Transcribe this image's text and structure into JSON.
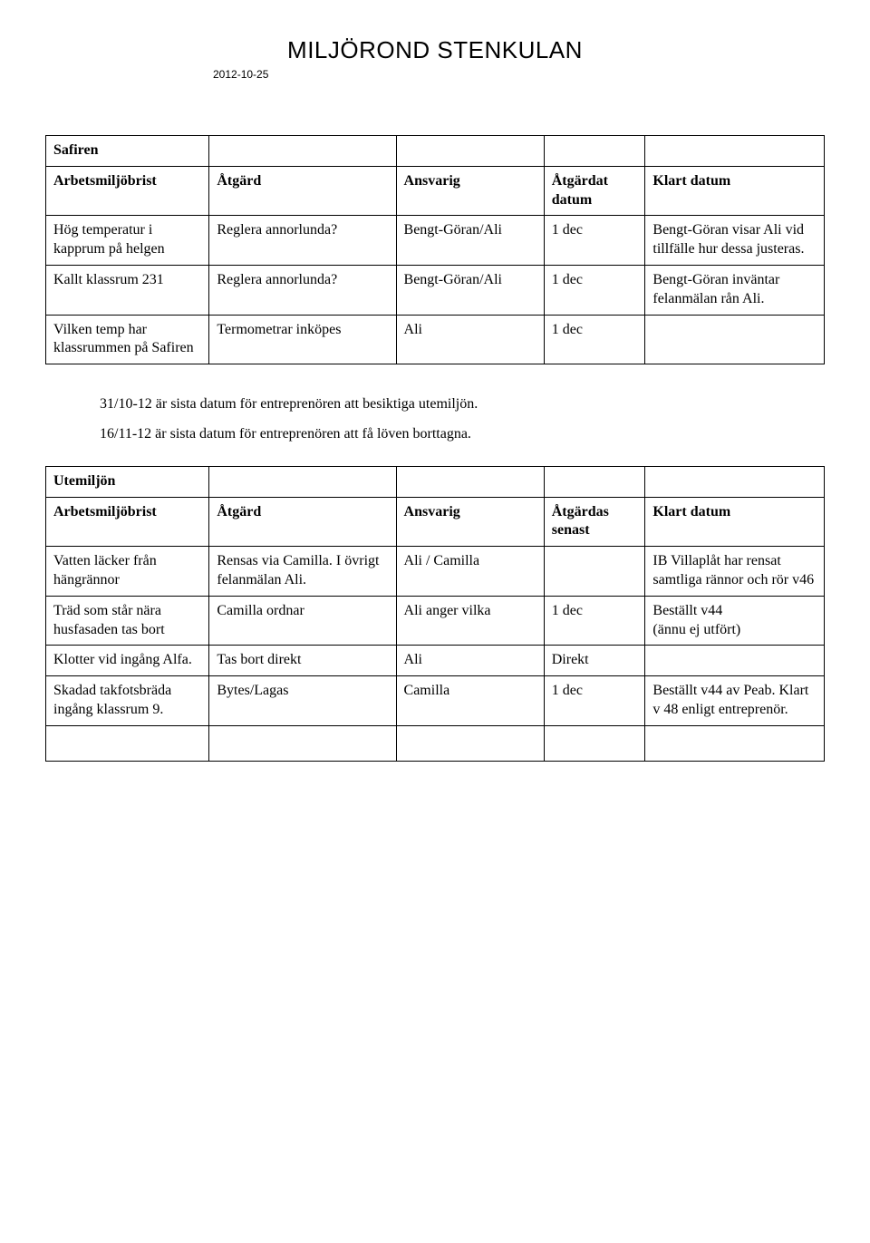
{
  "header": {
    "title": "MILJÖROND STENKULAN",
    "date": "2012-10-25"
  },
  "table1": {
    "section": "Safiren",
    "headers": {
      "c1": "Arbetsmiljöbrist",
      "c2": "Åtgärd",
      "c3": "Ansvarig",
      "c4": "Åtgärdat datum",
      "c5": "Klart datum"
    },
    "rows": [
      {
        "c1": "Hög temperatur i kapprum på helgen",
        "c2": "Reglera annorlunda?",
        "c3": "Bengt-Göran/Ali",
        "c4": "1 dec",
        "c5": "Bengt-Göran visar Ali vid tillfälle hur dessa justeras."
      },
      {
        "c1": "Kallt klassrum 231",
        "c2": "Reglera annorlunda?",
        "c3": "Bengt-Göran/Ali",
        "c4": "1 dec",
        "c5": "Bengt-Göran inväntar felanmälan rån Ali."
      },
      {
        "c1": "Vilken temp har klassrummen på Safiren",
        "c2": "Termometrar inköpes",
        "c3": "Ali",
        "c4": "1 dec",
        "c5": ""
      }
    ]
  },
  "notes": {
    "line1": "31/10-12 är sista datum för entreprenören att besiktiga utemiljön.",
    "line2": "16/11-12 är sista datum för entreprenören att få löven borttagna."
  },
  "table2": {
    "section": "Utemiljön",
    "headers": {
      "c1": "Arbetsmiljöbrist",
      "c2": "Åtgärd",
      "c3": "Ansvarig",
      "c4": "Åtgärdas senast",
      "c5": "Klart datum"
    },
    "rows": [
      {
        "c1": "Vatten läcker från hängrännor",
        "c2": "Rensas via Camilla. I övrigt felanmälan Ali.",
        "c3": " Ali / Camilla",
        "c4": "",
        "c5": "IB Villaplåt har rensat samtliga rännor och rör v46"
      },
      {
        "c1": "Träd som står nära husfasaden tas bort",
        "c2": "Camilla ordnar",
        "c3": "Ali anger vilka",
        "c4": " 1 dec",
        "c5": "Beställt v44\n(ännu ej utfört)"
      },
      {
        "c1": "Klotter vid ingång Alfa.",
        "c2": "Tas bort direkt",
        "c3": "Ali",
        "c4": "Direkt",
        "c5": ""
      },
      {
        "c1": "Skadad takfotsbräda ingång klassrum 9.",
        "c2": "Bytes/Lagas",
        "c3": "Camilla",
        "c4": "1 dec",
        "c5": "Beställt v44 av Peab. Klart v 48 enligt entreprenör."
      }
    ]
  }
}
